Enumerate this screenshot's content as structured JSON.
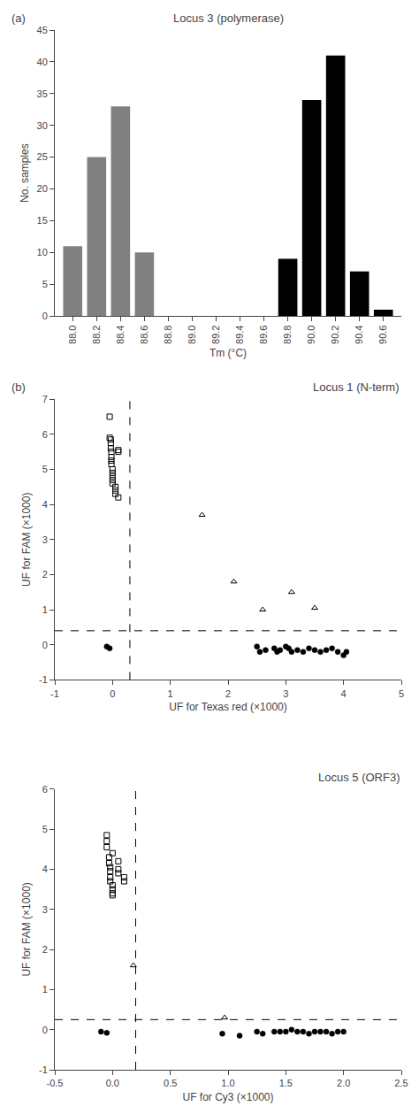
{
  "chart_data": [
    {
      "type": "bar",
      "title": "Locus 3 (polymerase)",
      "xlabel": "Tm (°C)",
      "ylabel": "No. samples",
      "x": [
        88.0,
        88.2,
        88.4,
        88.6,
        88.8,
        89.0,
        89.2,
        89.4,
        89.6,
        89.8,
        90.0,
        90.2,
        90.4,
        90.6
      ],
      "values": [
        11,
        25,
        33,
        10,
        0,
        0,
        0,
        0,
        0,
        9,
        34,
        41,
        7,
        1
      ],
      "colors": [
        "#808080",
        "#808080",
        "#808080",
        "#808080",
        "#808080",
        "#808080",
        "#808080",
        "#808080",
        "#808080",
        "#000000",
        "#000000",
        "#000000",
        "#000000",
        "#000000"
      ],
      "xlim": [
        87.85,
        90.75
      ],
      "xticks": [
        {
          "value": 88.0,
          "label": "88.0"
        },
        {
          "value": 88.2,
          "label": "88.2"
        },
        {
          "value": 88.4,
          "label": "88.4"
        },
        {
          "value": 88.6,
          "label": "88.6"
        },
        {
          "value": 88.8,
          "label": "88.8"
        },
        {
          "value": 89.0,
          "label": "89.0"
        },
        {
          "value": 89.2,
          "label": "89.2"
        },
        {
          "value": 89.4,
          "label": "89.4"
        },
        {
          "value": 89.6,
          "label": "89.6"
        },
        {
          "value": 89.8,
          "label": "89.8"
        },
        {
          "value": 90.0,
          "label": "90.0"
        },
        {
          "value": 90.2,
          "label": "90.2"
        },
        {
          "value": 90.4,
          "label": "90.4"
        },
        {
          "value": 90.6,
          "label": "90.6"
        }
      ],
      "ylim": [
        0,
        45
      ],
      "yticks": [
        0,
        5,
        10,
        15,
        20,
        25,
        30,
        35,
        40,
        45
      ],
      "grid": false,
      "annotations": [
        {
          "text": "(a)"
        }
      ]
    },
    {
      "type": "scatter",
      "title": "Locus 1 (N-term)",
      "xlabel": "UF for Texas red (×1000)",
      "ylabel": "UF for FAM (×1000)",
      "series": [
        {
          "marker": "square-open",
          "color": "#000000",
          "x": [
            -0.05,
            -0.05,
            -0.03,
            -0.03,
            -0.03,
            -0.02,
            -0.02,
            -0.02,
            -0.02,
            0.0,
            0.0,
            0.0,
            0.0,
            0.0,
            0.05,
            0.05,
            0.05,
            0.1,
            0.1,
            0.1
          ],
          "values": [
            6.5,
            5.9,
            5.85,
            5.75,
            5.6,
            5.5,
            5.35,
            5.25,
            5.15,
            5.0,
            4.9,
            4.8,
            4.7,
            4.6,
            4.5,
            4.4,
            4.3,
            4.2,
            5.5,
            5.55
          ]
        },
        {
          "marker": "triangle-up-open",
          "color": "#000000",
          "x": [
            1.55,
            2.1,
            2.6,
            3.1,
            3.5
          ],
          "values": [
            3.7,
            1.8,
            1.0,
            1.5,
            1.05
          ]
        },
        {
          "marker": "circle",
          "color": "#000000",
          "x": [
            -0.1,
            -0.05,
            2.5,
            2.55,
            2.65,
            2.8,
            2.85,
            2.9,
            3.0,
            3.05,
            3.1,
            3.2,
            3.3,
            3.4,
            3.5,
            3.6,
            3.7,
            3.8,
            3.9,
            4.0,
            4.05
          ],
          "values": [
            -0.05,
            -0.1,
            -0.05,
            -0.2,
            -0.15,
            -0.1,
            -0.2,
            -0.15,
            -0.05,
            -0.1,
            -0.2,
            -0.15,
            -0.2,
            -0.1,
            -0.15,
            -0.2,
            -0.15,
            -0.1,
            -0.2,
            -0.3,
            -0.2
          ]
        }
      ],
      "vline": 0.3,
      "hline": 0.4,
      "xlim": [
        -1,
        5
      ],
      "ylim": [
        -1,
        7
      ],
      "xticks": [
        -1,
        0,
        1,
        2,
        3,
        4,
        5
      ],
      "yticks": [
        -1,
        0,
        1,
        2,
        3,
        4,
        5,
        6,
        7
      ],
      "grid": false,
      "annotations": [
        {
          "text": "(b)"
        }
      ]
    },
    {
      "type": "scatter",
      "title": "Locus 5 (ORF3)",
      "xlabel": "UF for Cy3 (×1000)",
      "ylabel": "UF for FAM (×1000)",
      "series": [
        {
          "marker": "square-open",
          "color": "#000000",
          "x": [
            -0.05,
            -0.05,
            -0.05,
            -0.03,
            -0.03,
            -0.02,
            -0.02,
            -0.02,
            -0.02,
            0.0,
            0.0,
            0.0,
            0.0,
            0.0,
            0.05,
            0.05,
            0.05,
            0.1,
            0.1
          ],
          "values": [
            4.85,
            4.7,
            4.55,
            4.3,
            4.15,
            4.05,
            3.95,
            3.8,
            3.7,
            3.6,
            3.5,
            3.4,
            3.35,
            4.4,
            4.2,
            4.0,
            3.9,
            3.8,
            3.7
          ]
        },
        {
          "marker": "triangle-up-open",
          "color": "#000000",
          "x": [
            0.18,
            0.97
          ],
          "values": [
            1.6,
            0.3
          ]
        },
        {
          "marker": "circle",
          "color": "#000000",
          "x": [
            -0.1,
            -0.05,
            0.95,
            1.1,
            1.25,
            1.3,
            1.4,
            1.45,
            1.5,
            1.55,
            1.6,
            1.65,
            1.7,
            1.75,
            1.8,
            1.85,
            1.9,
            1.95,
            2.0
          ],
          "values": [
            -0.05,
            -0.08,
            -0.1,
            -0.15,
            -0.05,
            -0.1,
            -0.05,
            -0.05,
            -0.05,
            0.0,
            -0.05,
            -0.05,
            -0.1,
            -0.05,
            -0.05,
            -0.05,
            -0.1,
            -0.05,
            -0.05
          ]
        }
      ],
      "vline": 0.2,
      "hline": 0.25,
      "xlim": [
        -0.5,
        2.5
      ],
      "ylim": [
        -1,
        6
      ],
      "xticks": [
        -0.5,
        {
          "value": 0,
          "label": "0.0"
        },
        0.5,
        {
          "value": 1.0,
          "label": "1.0"
        },
        1.5,
        {
          "value": 2.0,
          "label": "2.0"
        },
        2.5
      ],
      "yticks": [
        -1,
        0,
        1,
        2,
        3,
        4,
        5,
        6
      ],
      "grid": false
    }
  ]
}
